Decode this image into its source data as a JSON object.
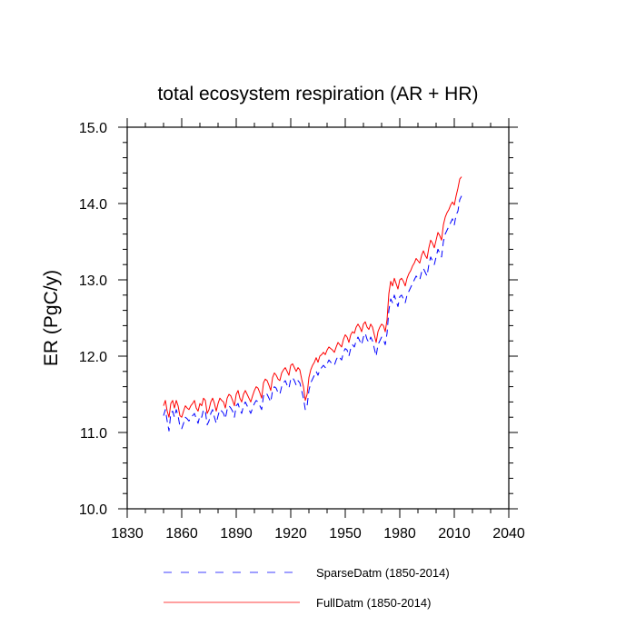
{
  "chart_data": {
    "type": "line",
    "title": "total ecosystem respiration (AR + HR)",
    "xlabel": "",
    "ylabel": "ER  (PgC/y)",
    "xlim": [
      1830,
      2040
    ],
    "ylim": [
      10.0,
      15.0
    ],
    "x_ticks": [
      "1830",
      "1860",
      "1890",
      "1920",
      "1950",
      "1980",
      "2010",
      "2040"
    ],
    "y_ticks": [
      "10.0",
      "11.0",
      "12.0",
      "13.0",
      "14.0",
      "15.0"
    ],
    "grid": false,
    "legend_position": "bottom",
    "x_start": 1850,
    "x_end": 2014,
    "series": [
      {
        "name": "SparseDatm (1850-2014)",
        "color": "#0000ff",
        "style": "dashed",
        "values": [
          11.22,
          11.3,
          11.15,
          11.02,
          11.25,
          11.28,
          11.2,
          11.3,
          11.22,
          11.08,
          11.05,
          11.12,
          11.2,
          11.18,
          11.15,
          11.2,
          11.22,
          11.25,
          11.18,
          11.12,
          11.22,
          11.2,
          11.3,
          11.28,
          11.1,
          11.15,
          11.25,
          11.3,
          11.2,
          11.12,
          11.22,
          11.3,
          11.28,
          11.25,
          11.18,
          11.3,
          11.35,
          11.32,
          11.28,
          11.2,
          11.35,
          11.38,
          11.3,
          11.25,
          11.35,
          11.4,
          11.35,
          11.3,
          11.25,
          11.32,
          11.38,
          11.42,
          11.4,
          11.35,
          11.3,
          11.48,
          11.52,
          11.5,
          11.45,
          11.4,
          11.55,
          11.6,
          11.58,
          11.52,
          11.5,
          11.6,
          11.65,
          11.68,
          11.62,
          11.58,
          11.7,
          11.72,
          11.68,
          11.62,
          11.68,
          11.65,
          11.55,
          11.45,
          11.3,
          11.35,
          11.55,
          11.65,
          11.7,
          11.75,
          11.8,
          11.75,
          11.82,
          11.85,
          11.88,
          11.85,
          11.9,
          11.95,
          11.92,
          11.9,
          11.88,
          11.95,
          12.0,
          11.98,
          11.95,
          12.05,
          12.1,
          12.08,
          12.0,
          12.1,
          12.15,
          12.12,
          12.2,
          12.25,
          12.2,
          12.15,
          12.25,
          12.3,
          12.22,
          12.18,
          12.25,
          12.2,
          12.1,
          12.0,
          12.15,
          12.2,
          12.25,
          12.22,
          12.15,
          12.3,
          12.6,
          12.75,
          12.7,
          12.8,
          12.72,
          12.65,
          12.78,
          12.8,
          12.75,
          12.7,
          12.8,
          12.85,
          12.9,
          12.95,
          13.0,
          13.05,
          13.02,
          13.0,
          13.1,
          13.15,
          13.1,
          13.05,
          13.2,
          13.3,
          13.25,
          13.2,
          13.3,
          13.4,
          13.35,
          13.3,
          13.5,
          13.6,
          13.65,
          13.7,
          13.75,
          13.8,
          13.72,
          13.85,
          13.9,
          14.05,
          14.1
        ]
      },
      {
        "name": "FullDatm (1850-2014)",
        "color": "#ff0000",
        "style": "solid",
        "values": [
          11.35,
          11.42,
          11.28,
          11.2,
          11.38,
          11.42,
          11.32,
          11.42,
          11.35,
          11.22,
          11.2,
          11.28,
          11.35,
          11.32,
          11.3,
          11.35,
          11.38,
          11.42,
          11.32,
          11.28,
          11.38,
          11.35,
          11.45,
          11.42,
          11.25,
          11.3,
          11.4,
          11.45,
          11.38,
          11.28,
          11.38,
          11.45,
          11.42,
          11.4,
          11.32,
          11.45,
          11.5,
          11.48,
          11.42,
          11.35,
          11.5,
          11.55,
          11.45,
          11.4,
          11.5,
          11.55,
          11.5,
          11.45,
          11.4,
          11.48,
          11.55,
          11.6,
          11.58,
          11.52,
          11.45,
          11.65,
          11.7,
          11.68,
          11.62,
          11.55,
          11.72,
          11.78,
          11.75,
          11.7,
          11.68,
          11.78,
          11.82,
          11.85,
          11.8,
          11.75,
          11.88,
          11.9,
          11.85,
          11.8,
          11.85,
          11.82,
          11.7,
          11.6,
          11.42,
          11.5,
          11.72,
          11.82,
          11.88,
          11.92,
          11.98,
          11.92,
          12.0,
          12.02,
          12.05,
          12.02,
          12.08,
          12.12,
          12.1,
          12.08,
          12.05,
          12.12,
          12.18,
          12.15,
          12.12,
          12.22,
          12.28,
          12.25,
          12.18,
          12.28,
          12.32,
          12.3,
          12.38,
          12.42,
          12.38,
          12.32,
          12.42,
          12.45,
          12.38,
          12.35,
          12.42,
          12.38,
          12.28,
          12.18,
          12.32,
          12.38,
          12.42,
          12.4,
          12.32,
          12.48,
          12.82,
          12.98,
          12.92,
          13.02,
          12.95,
          12.88,
          13.0,
          13.02,
          12.98,
          12.92,
          13.02,
          13.08,
          13.12,
          13.18,
          13.22,
          13.28,
          13.25,
          13.22,
          13.32,
          13.38,
          13.32,
          13.28,
          13.42,
          13.52,
          13.48,
          13.42,
          13.52,
          13.62,
          13.58,
          13.52,
          13.72,
          13.82,
          13.88,
          13.92,
          13.98,
          14.02,
          13.98,
          14.1,
          14.2,
          14.32,
          14.35
        ]
      }
    ]
  }
}
